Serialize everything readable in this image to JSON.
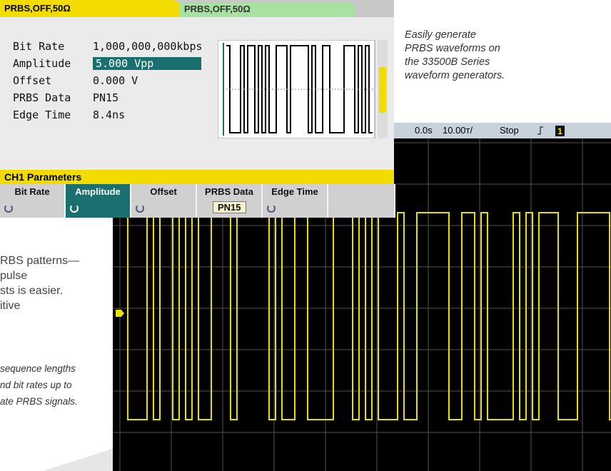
{
  "panel": {
    "tabs": [
      "PRBS,OFF,50Ω",
      "PRBS,OFF,50Ω"
    ],
    "params": [
      {
        "label": "Bit Rate",
        "value": "1,000,000,000kbps"
      },
      {
        "label": "Amplitude",
        "value": "5.000 Vpp"
      },
      {
        "label": "Offset",
        "value": "0.000 V"
      },
      {
        "label": "PRBS Data",
        "value": "PN15"
      },
      {
        "label": "Edge Time",
        "value": "8.4ns"
      }
    ],
    "section": "CH1 Parameters",
    "softkeys": [
      {
        "label": "Bit Rate"
      },
      {
        "label": "Amplitude"
      },
      {
        "label": "Offset"
      },
      {
        "label": "PRBS Data",
        "sub": "PN15"
      },
      {
        "label": "Edge Time"
      }
    ]
  },
  "caption": [
    "Easily generate",
    "PRBS waveforms on",
    "the 33500B Series",
    "waveform generators."
  ],
  "scope": {
    "status": [
      "0.0s",
      "10.00т/",
      "Stop"
    ],
    "channel": "1"
  },
  "body_text": [
    "RBS patterns—",
    "pulse",
    "sts is easier.",
    "itive"
  ],
  "side_note": [
    "sequence lengths",
    "nd bit rates up to",
    "ate PRBS signals."
  ]
}
